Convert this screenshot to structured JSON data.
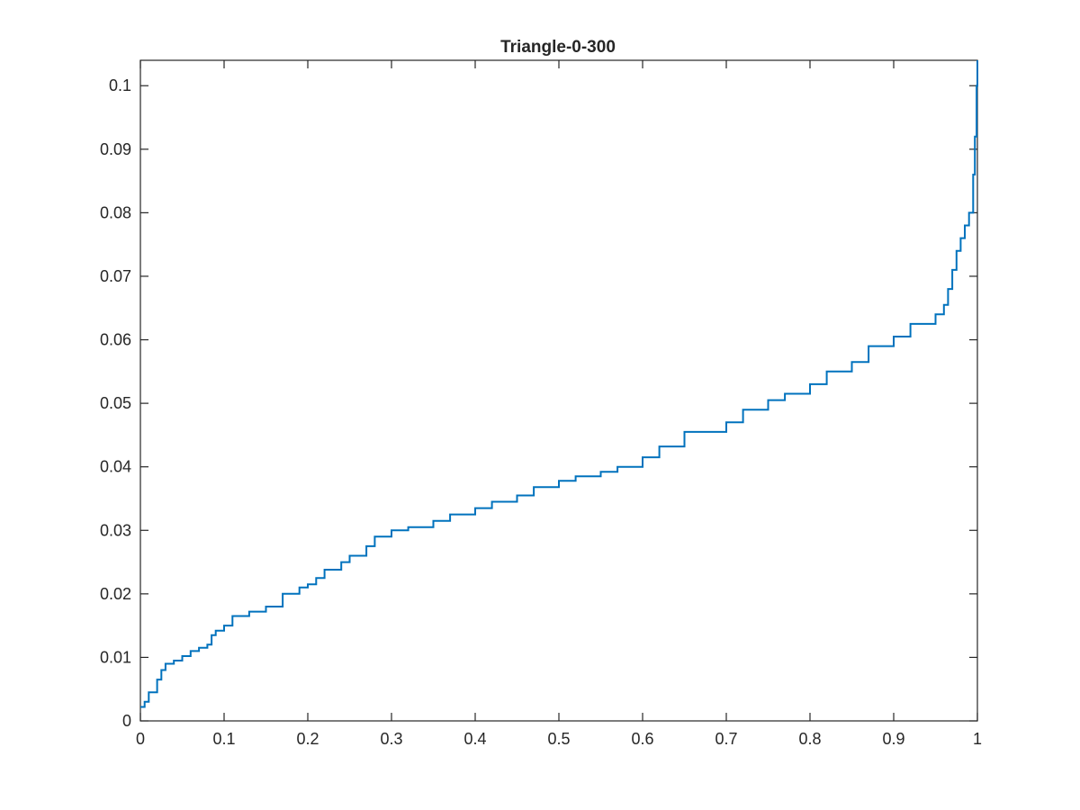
{
  "chart_data": {
    "type": "line",
    "title": "Triangle-0-300",
    "xlabel": "",
    "ylabel": "",
    "xlim": [
      0,
      1
    ],
    "ylim": [
      0,
      0.104
    ],
    "grid": false,
    "legend": "none",
    "box": true,
    "x_ticks": [
      0,
      0.1,
      0.2,
      0.3,
      0.4,
      0.5,
      0.6,
      0.7,
      0.8,
      0.9,
      1
    ],
    "x_tick_labels": [
      "0",
      "0.1",
      "0.2",
      "0.3",
      "0.4",
      "0.5",
      "0.6",
      "0.7",
      "0.8",
      "0.9",
      "1"
    ],
    "y_ticks": [
      0,
      0.01,
      0.02,
      0.03,
      0.04,
      0.05,
      0.06,
      0.07,
      0.08,
      0.09,
      0.1
    ],
    "y_tick_labels": [
      "0",
      "0.01",
      "0.02",
      "0.03",
      "0.04",
      "0.05",
      "0.06",
      "0.07",
      "0.08",
      "0.09",
      "0.1"
    ],
    "series": [
      {
        "color": "#0072BD",
        "step": true,
        "x": [
          0,
          0.005,
          0.01,
          0.02,
          0.025,
          0.03,
          0.04,
          0.05,
          0.06,
          0.07,
          0.08,
          0.085,
          0.09,
          0.1,
          0.11,
          0.13,
          0.15,
          0.17,
          0.19,
          0.2,
          0.21,
          0.22,
          0.24,
          0.25,
          0.27,
          0.28,
          0.3,
          0.32,
          0.35,
          0.37,
          0.4,
          0.42,
          0.45,
          0.47,
          0.5,
          0.52,
          0.55,
          0.57,
          0.6,
          0.62,
          0.65,
          0.7,
          0.72,
          0.75,
          0.77,
          0.8,
          0.82,
          0.85,
          0.87,
          0.9,
          0.92,
          0.95,
          0.96,
          0.965,
          0.97,
          0.975,
          0.98,
          0.985,
          0.99,
          0.995,
          0.997,
          0.999,
          1.0
        ],
        "y": [
          0.0022,
          0.003,
          0.0045,
          0.0065,
          0.008,
          0.009,
          0.0095,
          0.0102,
          0.011,
          0.0115,
          0.012,
          0.0135,
          0.0142,
          0.015,
          0.0165,
          0.0172,
          0.018,
          0.02,
          0.021,
          0.0215,
          0.0225,
          0.0238,
          0.025,
          0.026,
          0.0275,
          0.029,
          0.03,
          0.0305,
          0.0315,
          0.0325,
          0.0335,
          0.0345,
          0.0355,
          0.0368,
          0.0378,
          0.0385,
          0.0392,
          0.04,
          0.0415,
          0.0432,
          0.0455,
          0.047,
          0.049,
          0.0505,
          0.0515,
          0.053,
          0.055,
          0.0565,
          0.059,
          0.0605,
          0.0625,
          0.064,
          0.0655,
          0.068,
          0.071,
          0.074,
          0.076,
          0.078,
          0.08,
          0.086,
          0.092,
          0.1,
          0.104
        ]
      }
    ]
  }
}
